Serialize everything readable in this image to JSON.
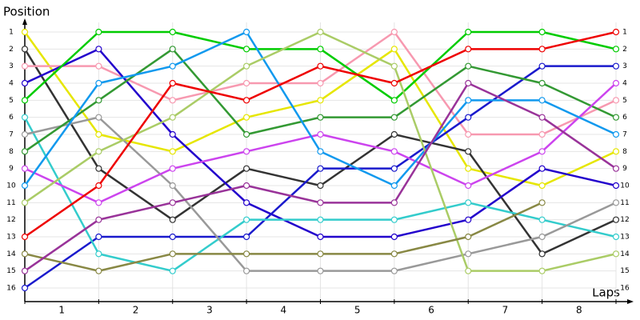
{
  "chart_data": {
    "type": "line",
    "y_label": "Position",
    "x_label": "Laps",
    "x": [
      0,
      1,
      2,
      3,
      4,
      5,
      6,
      7,
      8
    ],
    "xlim": [
      0,
      8
    ],
    "xticks": [
      {
        "value": 0.5,
        "label": "1"
      },
      {
        "value": 1.5,
        "label": "2"
      },
      {
        "value": 2.5,
        "label": "3"
      },
      {
        "value": 3.5,
        "label": "4"
      },
      {
        "value": 4.5,
        "label": "5"
      },
      {
        "value": 5.5,
        "label": "6"
      },
      {
        "value": 6.5,
        "label": "7"
      },
      {
        "value": 7.5,
        "label": "8"
      }
    ],
    "ylim": [
      1,
      16
    ],
    "y_inverted": true,
    "yticks": [
      1,
      2,
      3,
      4,
      5,
      6,
      7,
      8,
      9,
      10,
      11,
      12,
      13,
      14,
      15,
      16
    ],
    "grid": true,
    "series": [
      {
        "color": "#e6e600",
        "values": [
          1,
          7,
          8,
          6,
          5,
          2,
          9,
          10,
          8
        ]
      },
      {
        "color": "#333333",
        "values": [
          2,
          9,
          12,
          9,
          10,
          7,
          8,
          14,
          12
        ]
      },
      {
        "color": "#f799b0",
        "values": [
          3,
          3,
          5,
          4,
          4,
          1,
          7,
          7,
          5
        ]
      },
      {
        "color": "#2200cc",
        "values": [
          4,
          2,
          7,
          11,
          13,
          13,
          12,
          9,
          10
        ]
      },
      {
        "color": "#1a1acc",
        "values": [
          16,
          13,
          13,
          13,
          9,
          9,
          6,
          3,
          3
        ]
      },
      {
        "color": "#00cc00",
        "values": [
          5,
          1,
          1,
          2,
          2,
          5,
          1,
          1,
          2
        ]
      },
      {
        "color": "#33cccc",
        "values": [
          6,
          14,
          15,
          12,
          12,
          12,
          11,
          12,
          13
        ]
      },
      {
        "color": "#999999",
        "values": [
          7,
          6,
          10,
          15,
          15,
          15,
          14,
          13,
          11
        ]
      },
      {
        "color": "#339933",
        "values": [
          8,
          5,
          2,
          7,
          6,
          6,
          3,
          4,
          6
        ]
      },
      {
        "color": "#cc44ee",
        "values": [
          9,
          11,
          9,
          8,
          7,
          8,
          10,
          8,
          4
        ]
      },
      {
        "color": "#1199ee",
        "values": [
          10,
          4,
          3,
          1,
          8,
          10,
          5,
          5,
          7
        ]
      },
      {
        "color": "#aacc66",
        "values": [
          11,
          8,
          6,
          3,
          1,
          3,
          15,
          15,
          14
        ]
      },
      {
        "color": "#ee0000",
        "values": [
          13,
          10,
          4,
          5,
          3,
          4,
          2,
          2,
          1
        ]
      },
      {
        "color": "#888844",
        "values": [
          14,
          15,
          14,
          14,
          14,
          14,
          13,
          11,
          null
        ]
      },
      {
        "color": "#993399",
        "values": [
          15,
          12,
          11,
          10,
          11,
          11,
          4,
          6,
          9
        ]
      }
    ]
  }
}
